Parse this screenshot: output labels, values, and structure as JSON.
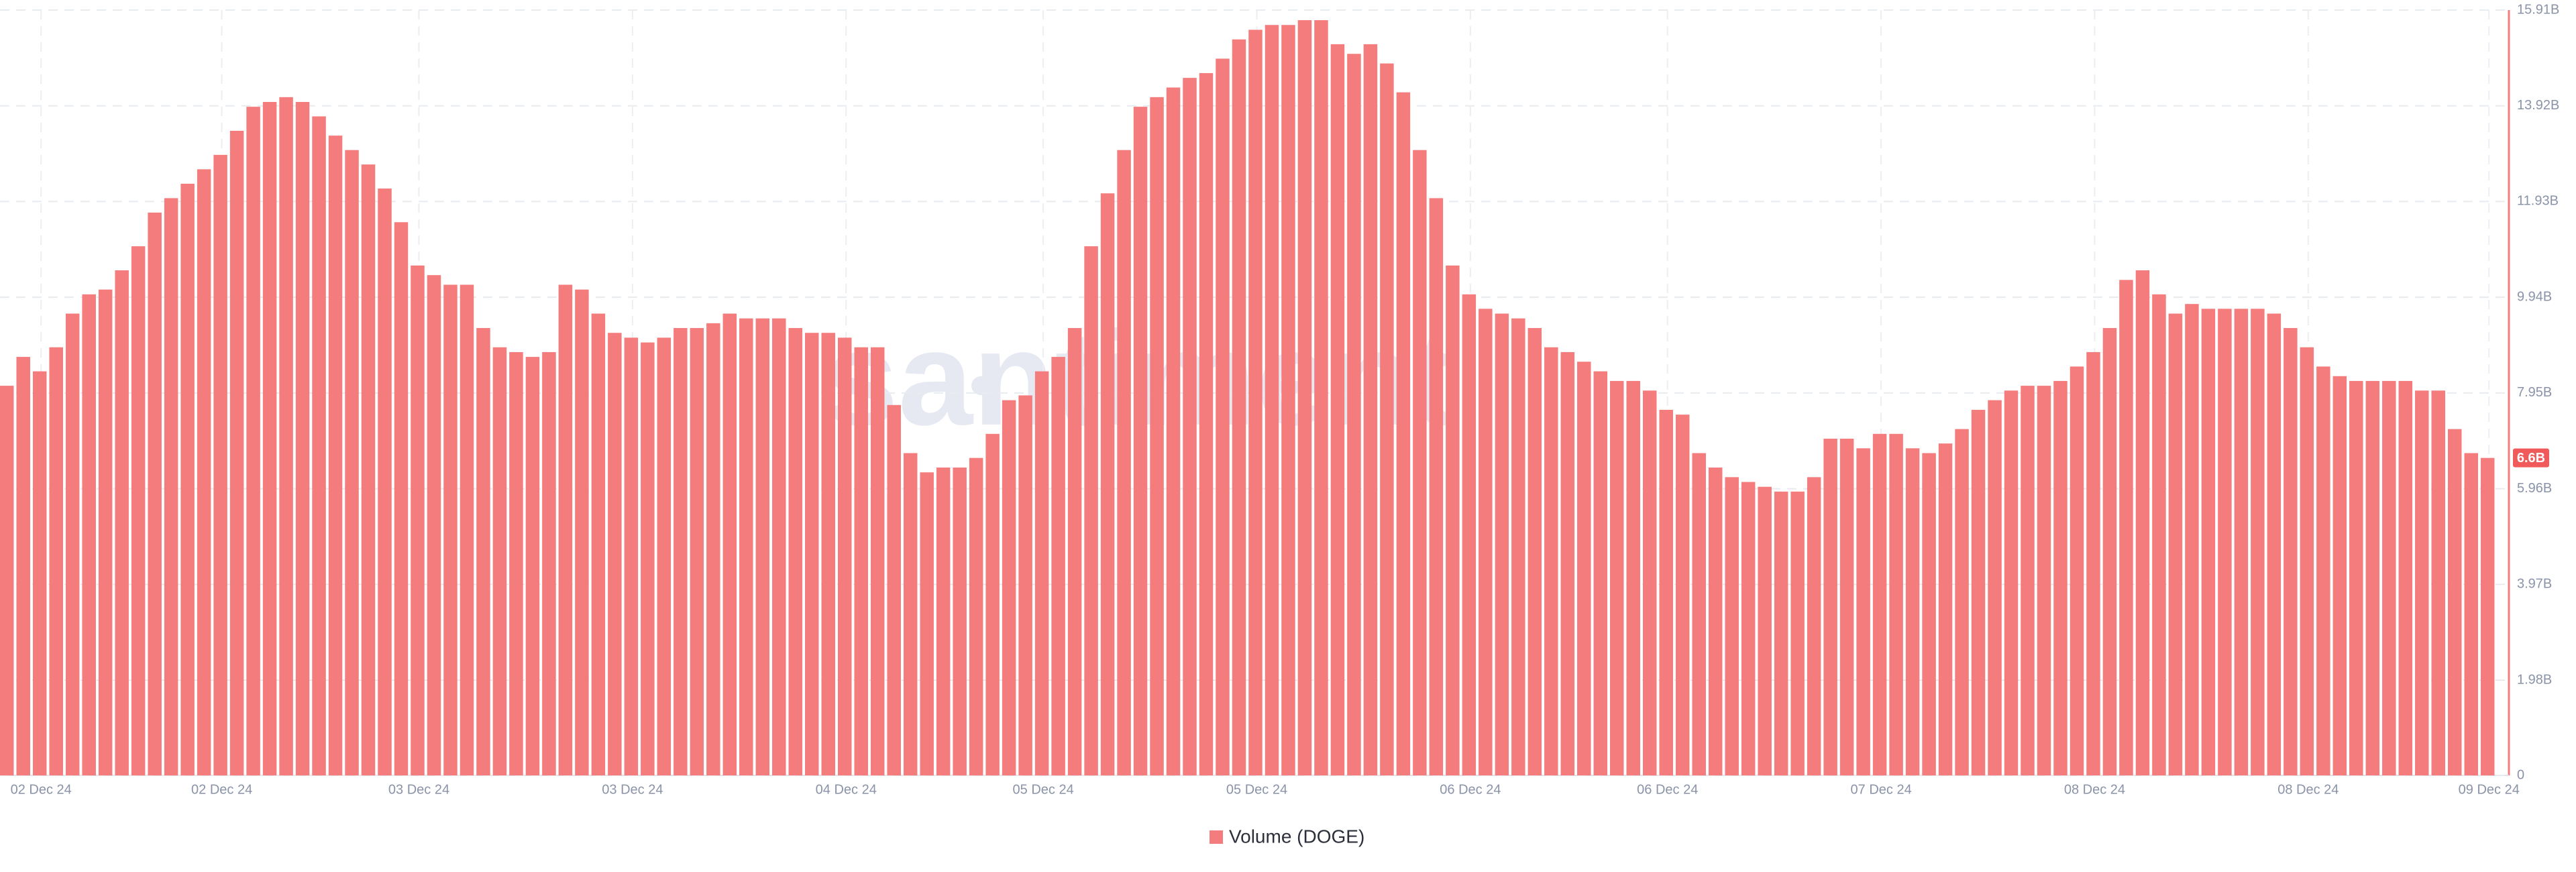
{
  "chart_data": {
    "type": "bar",
    "watermark": "santiment",
    "legend": "Volume (DOGE)",
    "color": "#f47c7c",
    "last_value_label": "6.6B",
    "grid": true,
    "ylim": [
      0,
      15.91
    ],
    "yticks": [
      0,
      {
        "value": 1.98,
        "label": "1.98B"
      },
      {
        "value": 3.97,
        "label": "3.97B"
      },
      {
        "value": 5.96,
        "label": "5.96B"
      },
      {
        "value": 7.95,
        "label": "7.95B"
      },
      {
        "value": 9.94,
        "label": "9.94B"
      },
      {
        "value": 11.93,
        "label": "11.93B"
      },
      {
        "value": 13.92,
        "label": "13.92B"
      },
      {
        "value": 15.91,
        "label": "15.91B"
      }
    ],
    "categories": [
      null,
      null,
      "02 Dec 24",
      null,
      null,
      null,
      null,
      null,
      null,
      null,
      null,
      null,
      null,
      "02 Dec 24",
      null,
      null,
      null,
      null,
      null,
      null,
      null,
      null,
      null,
      null,
      null,
      "03 Dec 24",
      null,
      null,
      null,
      null,
      null,
      null,
      null,
      null,
      null,
      null,
      null,
      null,
      "03 Dec 24",
      null,
      null,
      null,
      null,
      null,
      null,
      null,
      null,
      null,
      null,
      null,
      null,
      "04 Dec 24",
      null,
      null,
      null,
      null,
      null,
      null,
      null,
      null,
      null,
      null,
      null,
      "05 Dec 24",
      null,
      null,
      null,
      null,
      null,
      null,
      null,
      null,
      null,
      null,
      null,
      null,
      "05 Dec 24",
      null,
      null,
      null,
      null,
      null,
      null,
      null,
      null,
      null,
      null,
      null,
      null,
      "06 Dec 24",
      null,
      null,
      null,
      null,
      null,
      null,
      null,
      null,
      null,
      null,
      null,
      "06 Dec 24",
      null,
      null,
      null,
      null,
      null,
      null,
      null,
      null,
      null,
      null,
      null,
      null,
      "07 Dec 24",
      null,
      null,
      null,
      null,
      null,
      null,
      null,
      null,
      null,
      null,
      null,
      null,
      "08 Dec 24",
      null,
      null,
      null,
      null,
      null,
      null,
      null,
      null,
      null,
      null,
      null,
      null,
      "08 Dec 24",
      null,
      null,
      null,
      null,
      null,
      null,
      null,
      null,
      null,
      null,
      "09 Dec 24"
    ],
    "values": [
      8.1,
      8.7,
      8.4,
      8.9,
      9.6,
      10.0,
      10.1,
      10.5,
      11.0,
      11.7,
      12.0,
      12.3,
      12.6,
      12.9,
      13.4,
      13.9,
      14.0,
      14.1,
      14.0,
      13.7,
      13.3,
      13.0,
      12.7,
      12.2,
      11.5,
      10.6,
      10.4,
      10.2,
      10.2,
      9.3,
      8.9,
      8.8,
      8.7,
      8.8,
      10.2,
      10.1,
      9.6,
      9.2,
      9.1,
      9.0,
      9.1,
      9.3,
      9.3,
      9.4,
      9.6,
      9.5,
      9.5,
      9.5,
      9.3,
      9.2,
      9.2,
      9.1,
      8.9,
      8.9,
      7.7,
      6.7,
      6.3,
      6.4,
      6.4,
      6.6,
      7.1,
      7.8,
      7.9,
      8.4,
      8.7,
      9.3,
      11.0,
      12.1,
      13.0,
      13.9,
      14.1,
      14.3,
      14.5,
      14.6,
      14.9,
      15.3,
      15.5,
      15.6,
      15.6,
      15.7,
      15.7,
      15.2,
      15.0,
      15.2,
      14.8,
      14.2,
      13.0,
      12.0,
      10.6,
      10.0,
      9.7,
      9.6,
      9.5,
      9.3,
      8.9,
      8.8,
      8.6,
      8.4,
      8.2,
      8.2,
      8.0,
      7.6,
      7.5,
      6.7,
      6.4,
      6.2,
      6.1,
      6.0,
      5.9,
      5.9,
      6.2,
      7.0,
      7.0,
      6.8,
      7.1,
      7.1,
      6.8,
      6.7,
      6.9,
      7.2,
      7.6,
      7.8,
      8.0,
      8.1,
      8.1,
      8.2,
      8.5,
      8.8,
      9.3,
      10.3,
      10.5,
      10.0,
      9.6,
      9.8,
      9.7,
      9.7,
      9.7,
      9.7,
      9.6,
      9.3,
      8.9,
      8.5,
      8.3,
      8.2,
      8.2,
      8.2,
      8.2,
      8.0,
      8.0,
      7.2,
      6.7,
      6.6
    ]
  }
}
